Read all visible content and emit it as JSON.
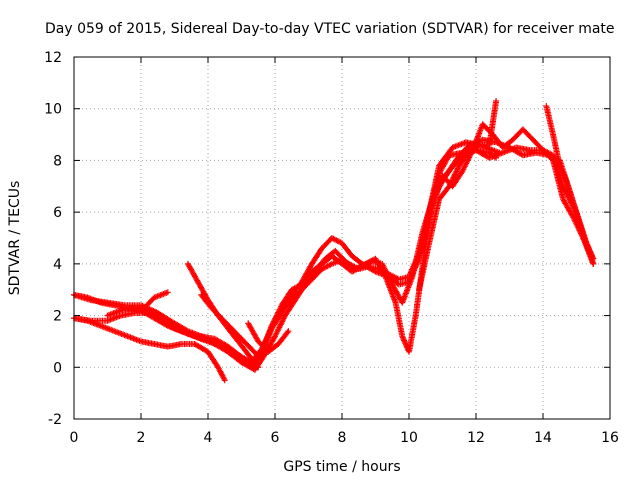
{
  "chart_data": {
    "type": "scatter",
    "title": "Day 059 of 2015, Sidereal Day-to-day VTEC variation (SDTVAR) for receiver mate",
    "xlabel": "GPS time / hours",
    "ylabel": "SDTVAR / TECUs",
    "xlim": [
      0,
      16
    ],
    "ylim": [
      -2,
      12
    ],
    "xticks": [
      "0",
      "2",
      "4",
      "6",
      "8",
      "10",
      "12",
      "14",
      "16"
    ],
    "yticks": [
      "-2",
      "0",
      "2",
      "4",
      "6",
      "8",
      "10",
      "12"
    ],
    "grid": true,
    "marker": "+",
    "color": "#ff0000",
    "series": [
      {
        "x": [
          0.0,
          0.4,
          0.8,
          1.2,
          1.6,
          2.0,
          2.4,
          2.8,
          3.2,
          3.6,
          4.0,
          4.3,
          4.5
        ],
        "y": [
          1.9,
          1.8,
          1.6,
          1.4,
          1.2,
          1.0,
          0.9,
          0.8,
          0.9,
          0.9,
          0.6,
          0.0,
          -0.5
        ]
      },
      {
        "x": [
          0.0,
          0.4,
          0.8,
          1.2,
          1.6,
          2.0,
          2.4,
          2.8,
          3.2,
          3.6,
          4.0,
          4.5,
          5.0,
          5.3,
          5.6,
          5.9,
          6.2,
          6.5,
          6.8,
          7.1,
          7.4,
          7.7,
          7.9,
          8.2,
          8.5,
          8.8,
          9.1,
          9.4,
          9.7,
          10.0,
          10.3,
          10.6,
          10.9,
          11.2,
          11.6,
          12.0,
          12.4,
          12.8,
          13.2,
          13.6,
          14.0,
          14.3,
          14.6,
          14.9,
          15.2,
          15.5
        ],
        "y": [
          2.8,
          2.7,
          2.5,
          2.4,
          2.3,
          2.2,
          1.9,
          1.6,
          1.4,
          1.2,
          1.0,
          0.8,
          0.4,
          0.1,
          0.5,
          1.5,
          2.2,
          2.6,
          3.0,
          3.4,
          3.8,
          4.0,
          4.1,
          4.0,
          3.8,
          3.9,
          3.8,
          3.6,
          3.4,
          3.5,
          4.4,
          6.0,
          7.5,
          8.2,
          8.3,
          8.4,
          8.1,
          8.3,
          8.5,
          8.4,
          8.4,
          8.2,
          7.0,
          6.2,
          5.0,
          4.2
        ]
      },
      {
        "x": [
          0.0,
          0.5,
          1.0,
          1.4,
          1.8,
          2.2,
          2.6,
          3.0,
          3.4,
          3.8,
          4.2,
          4.6,
          5.0,
          5.3,
          5.6,
          5.9,
          6.2,
          6.5,
          6.8,
          7.1,
          7.4,
          7.7,
          8.0,
          8.3,
          8.6,
          8.9,
          9.2,
          9.5,
          9.8,
          10.1,
          10.4,
          10.7,
          11.0,
          11.4,
          11.8,
          12.2,
          12.6,
          13.0,
          13.4,
          13.8,
          14.2,
          14.5,
          14.8,
          15.1,
          15.5
        ],
        "y": [
          1.9,
          1.8,
          1.8,
          2.0,
          2.1,
          2.1,
          1.8,
          1.5,
          1.3,
          1.1,
          1.0,
          0.6,
          0.2,
          0.0,
          0.6,
          1.6,
          2.4,
          3.0,
          3.2,
          3.7,
          4.0,
          4.3,
          4.0,
          3.7,
          3.9,
          4.1,
          4.0,
          3.2,
          2.5,
          3.5,
          5.2,
          6.5,
          7.2,
          8.0,
          8.6,
          8.8,
          8.7,
          8.5,
          8.2,
          8.3,
          8.2,
          8.0,
          6.8,
          5.5,
          4.0
        ]
      },
      {
        "x": [
          1.0,
          1.4,
          1.8,
          2.2,
          2.6,
          3.0,
          3.4,
          3.8,
          4.2,
          4.6,
          5.0,
          5.4,
          5.7,
          6.0,
          6.3,
          6.6,
          6.9,
          7.2,
          7.5,
          7.8,
          8.1,
          8.4,
          8.7,
          9.0,
          9.3,
          9.6,
          9.8,
          10.0,
          10.2,
          10.5,
          10.8,
          11.2,
          11.6,
          12.0,
          12.4,
          12.6
        ],
        "y": [
          2.0,
          2.2,
          2.3,
          2.2,
          2.0,
          1.6,
          1.3,
          1.2,
          0.9,
          0.6,
          0.2,
          -0.1,
          0.5,
          1.2,
          2.0,
          2.6,
          3.2,
          3.7,
          4.2,
          4.5,
          4.1,
          3.8,
          4.0,
          4.2,
          3.5,
          2.5,
          1.2,
          0.6,
          2.0,
          4.8,
          7.0,
          7.6,
          8.2,
          8.4,
          8.3,
          8.1
        ]
      },
      {
        "x": [
          0.0,
          0.5,
          1.0,
          1.5,
          2.0,
          2.5,
          3.0,
          3.4,
          3.8,
          4.2,
          4.6,
          5.0,
          5.3,
          5.6,
          5.9,
          6.2,
          6.5,
          6.8,
          7.1,
          7.4,
          7.7,
          8.0,
          8.3,
          8.6,
          9.0,
          9.4,
          9.7,
          10.0,
          10.3,
          10.6,
          10.9,
          11.3,
          11.7,
          12.1,
          12.5,
          12.7
        ],
        "y": [
          2.8,
          2.6,
          2.5,
          2.4,
          2.4,
          2.1,
          1.7,
          1.4,
          1.2,
          1.1,
          0.8,
          0.4,
          0.2,
          0.7,
          1.5,
          2.1,
          2.8,
          3.3,
          4.0,
          4.6,
          5.0,
          4.8,
          4.3,
          4.0,
          3.7,
          3.5,
          3.2,
          3.3,
          4.2,
          6.0,
          7.8,
          8.5,
          8.7,
          8.6,
          8.4,
          8.3
        ]
      },
      {
        "x": [
          10.4,
          10.7,
          11.0,
          11.3,
          11.6,
          11.9,
          12.2,
          12.5,
          12.8,
          13.1,
          13.4,
          13.7,
          14.0,
          14.3,
          14.6,
          14.9,
          15.2,
          15.5
        ],
        "y": [
          4.5,
          6.2,
          7.4,
          7.0,
          7.6,
          8.4,
          9.4,
          9.0,
          8.5,
          8.8,
          9.2,
          8.8,
          8.4,
          8.0,
          6.5,
          5.8,
          5.0,
          4.0
        ]
      },
      {
        "x": [
          10.3,
          10.6,
          10.9,
          11.2,
          11.5,
          11.8,
          12.1,
          12.4,
          12.6
        ],
        "y": [
          3.0,
          4.8,
          6.5,
          7.0,
          7.8,
          8.4,
          8.6,
          8.6,
          10.3
        ]
      },
      {
        "x": [
          14.1,
          14.3,
          14.5,
          14.7,
          14.9,
          15.1,
          15.3,
          15.5
        ],
        "y": [
          10.1,
          9.0,
          7.8,
          7.2,
          6.4,
          5.6,
          4.8,
          4.2
        ]
      },
      {
        "x": [
          3.4,
          3.7,
          4.0,
          4.3,
          4.6,
          4.9,
          5.2,
          5.5
        ],
        "y": [
          4.0,
          3.3,
          2.6,
          2.0,
          1.5,
          1.0,
          0.5,
          0.0
        ]
      },
      {
        "x": [
          3.8,
          4.1,
          4.4,
          4.7,
          5.0,
          5.3,
          5.6
        ],
        "y": [
          2.8,
          2.3,
          1.9,
          1.5,
          1.1,
          0.7,
          0.3
        ]
      },
      {
        "x": [
          2.1,
          2.4,
          2.8
        ],
        "y": [
          2.3,
          2.7,
          2.9
        ]
      },
      {
        "x": [
          5.2,
          5.5,
          5.8,
          6.1,
          6.4
        ],
        "y": [
          1.7,
          1.0,
          0.6,
          0.9,
          1.4
        ]
      }
    ]
  }
}
